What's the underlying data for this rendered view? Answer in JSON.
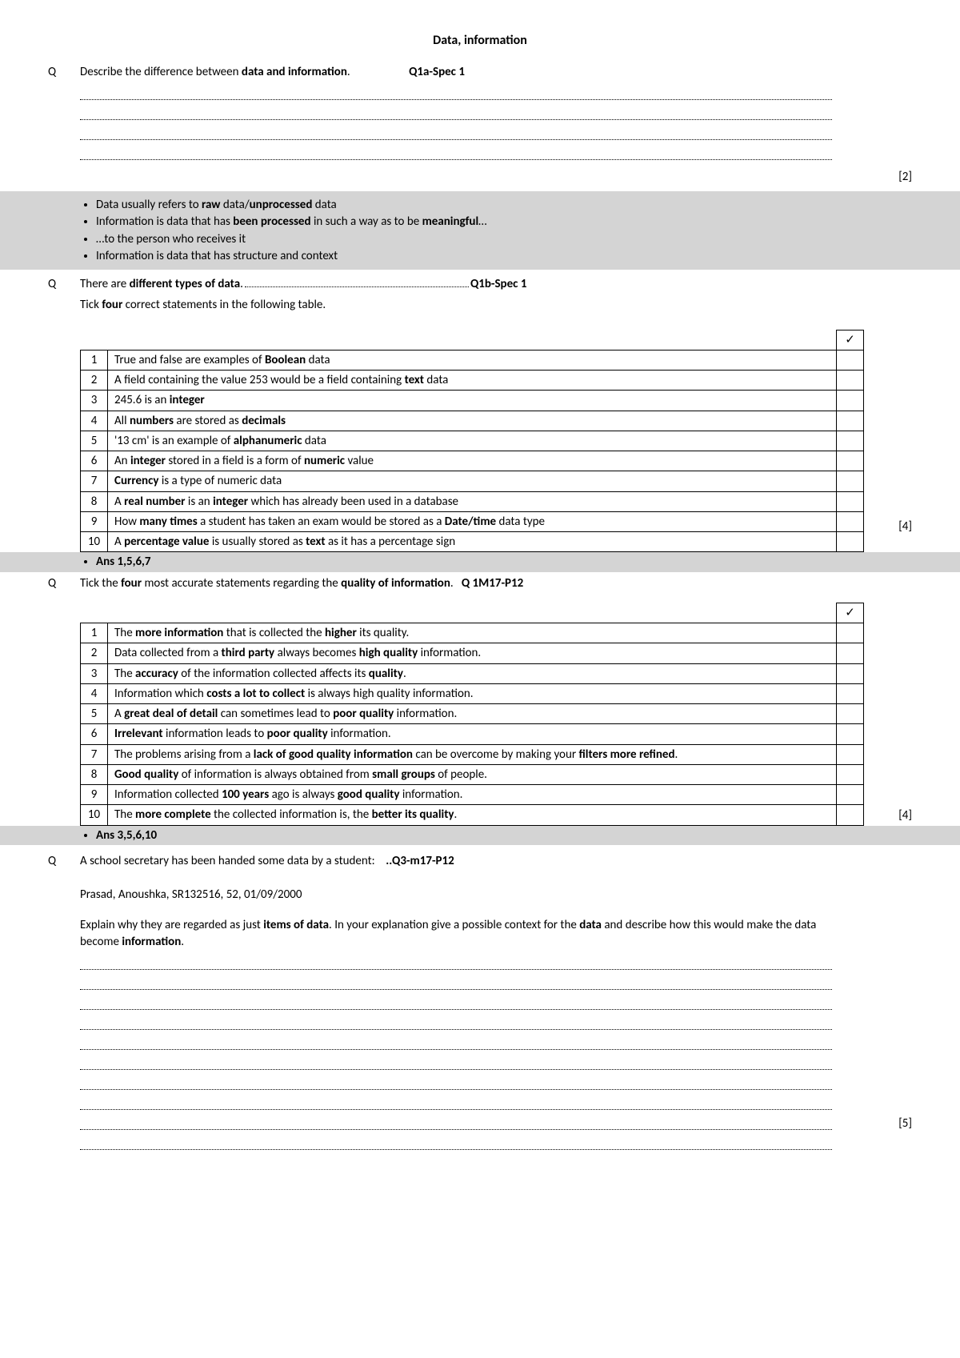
{
  "title": "Data, information",
  "q1": {
    "label": "Q",
    "prompt_pre": "Describe the difference between ",
    "prompt_bold": "data and information",
    "prompt_post": ".",
    "ref": "Q1a-Spec 1",
    "marks": "[2]",
    "answers": [
      "Data usually refers to <b>raw</b> data/<b>unprocessed</b> data",
      "Information is data that has <b>been processed</b> in such a way as to be <b>meaningful</b>…",
      "…to the person who receives it",
      "Information is data that has structure and context"
    ]
  },
  "q2": {
    "label": "Q",
    "prompt_pre": "There are ",
    "prompt_bold": "different types of data",
    "ref": "Q1b-Spec 1",
    "sub": "Tick <b>four</b> correct statements in the following table.",
    "tick": "✓",
    "marks": "[4]",
    "rows": [
      "True and false are examples of <b>Boolean</b> data",
      "A field containing the value 253 would be a field containing <b>text</b> data",
      "245.6 is an <b>integer</b>",
      "All <b>numbers</b> are stored as <b>decimals</b>",
      "'13 cm' is an example of <b>alphanumeric</b> data",
      "An <b>integer</b> stored in a field is a form of <b>numeric</b> value",
      "<b>Currency</b> is a type of numeric data",
      "A <b>real number</b> is an <b>integer</b> which has already been used in a database",
      "How <b>many times</b> a student has taken an exam would be stored as a <b>Date/time</b> data type",
      "A <b>percentage value</b> is usually stored as <b>text</b> as it has a percentage sign"
    ],
    "answer": "Ans 1,5,6,7"
  },
  "q3": {
    "label": "Q",
    "prompt": "Tick the <b>four</b> most accurate statements regarding the <b>quality of information</b>.",
    "ref": "Q 1M17-P12",
    "tick": "✓",
    "marks": "[4]",
    "rows": [
      "The <b>more information</b> that is collected the <b>higher</b> its quality.",
      "Data collected from a <b>third party</b> always becomes <b>high quality</b> information.",
      "The <b>accuracy</b> of the information collected affects its <b>quality</b>.",
      "Information which <b>costs a lot to collect</b> is always high quality information.",
      "A <b>great deal of detail</b> can sometimes lead to <b>poor quality</b> information.",
      "<b>Irrelevant</b> information leads to <b>poor quality</b> information.",
      "The problems arising from a <b>lack of good quality information</b> can be overcome by making your <b>filters more refined</b>.",
      "<b>Good quality</b> of information is always obtained from <b>small groups</b> of people.",
      "Information collected <b>100 years</b> ago is always <b>good quality</b> information.",
      "The <b>more complete</b> the collected information is, the <b>better its quality</b>."
    ],
    "answer": "Ans 3,5,6,10"
  },
  "q4": {
    "label": "Q",
    "prompt": "A school secretary has been handed some data by a student:",
    "ref": ".Q3-m17-P12",
    "example": "Prasad, Anoushka, SR132516, 52, 01/09/2000",
    "explain": "Explain why they are regarded as just <b>items of data</b>. In your explanation give a possible context for the <b>data</b> and describe how this would make the data become <b>information</b>.",
    "marks": "[5]"
  }
}
